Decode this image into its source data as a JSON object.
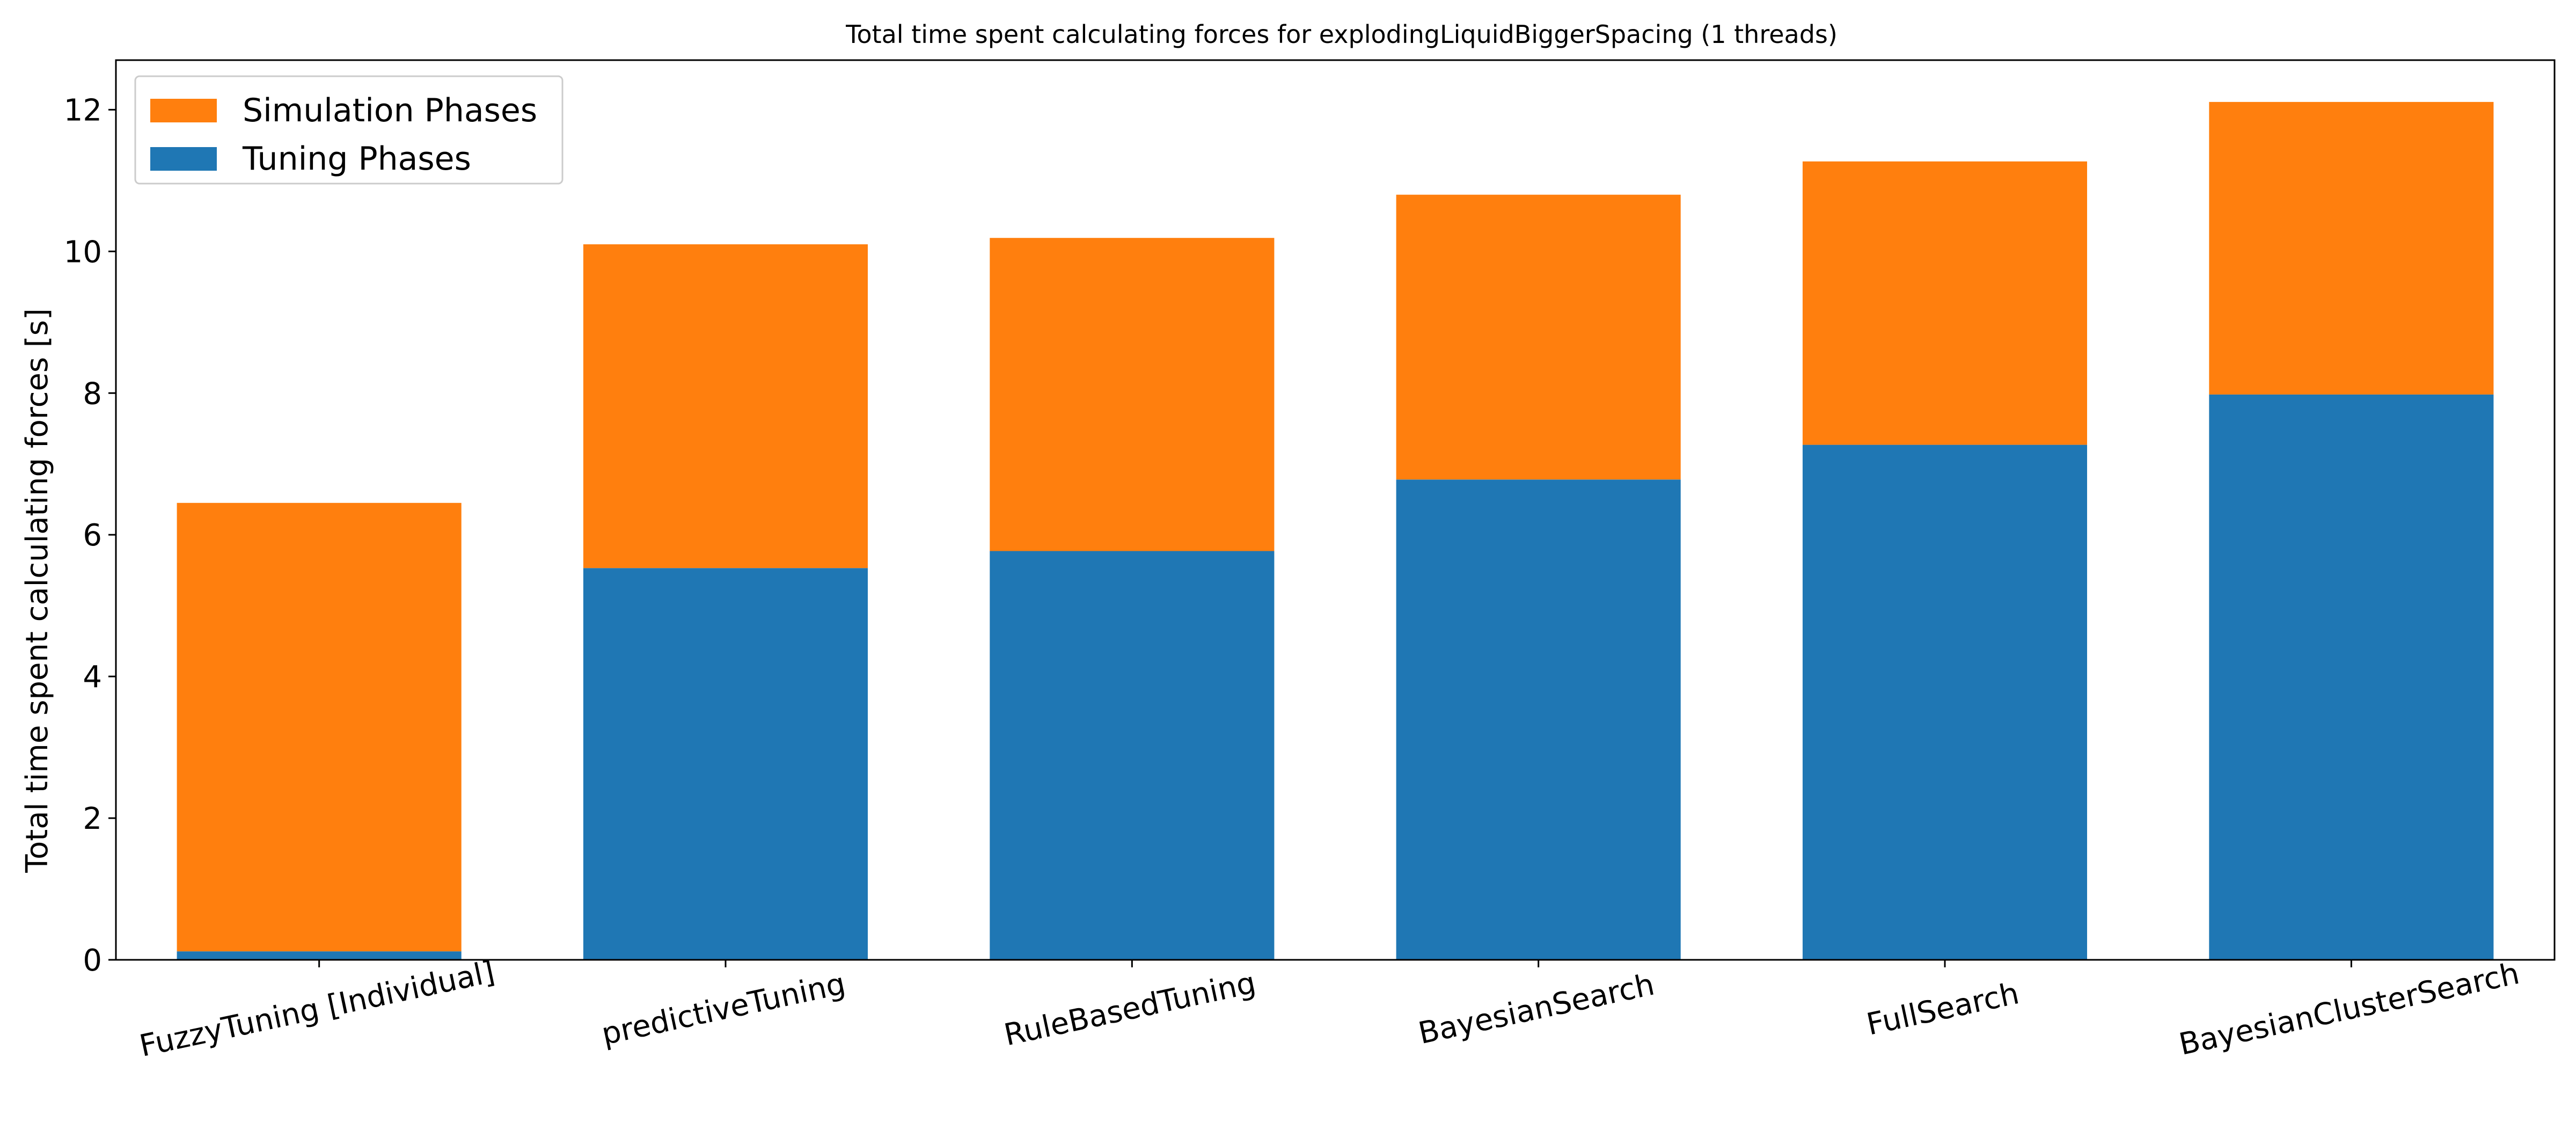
{
  "chart_data": {
    "type": "bar",
    "stacked": true,
    "title": "Total time spent calculating forces for explodingLiquidBiggerSpacing (1 threads)",
    "xlabel": "",
    "ylabel": "Total time spent calculating forces [s]",
    "ylim": [
      0,
      12.7
    ],
    "yticks": [
      0,
      2,
      4,
      6,
      8,
      10,
      12
    ],
    "grid": false,
    "legend_position": "top-left",
    "categories": [
      "FuzzyTuning [Individual]",
      "predictiveTuning",
      "RuleBasedTuning",
      "BayesianSearch",
      "FullSearch",
      "BayesianClusterSearch"
    ],
    "series": [
      {
        "name": "Tuning Phases",
        "color": "#1f77b4",
        "values": [
          0.12,
          5.53,
          5.77,
          6.78,
          7.27,
          7.98
        ]
      },
      {
        "name": "Simulation Phases",
        "color": "#ff7f0e",
        "values": [
          6.33,
          4.57,
          4.42,
          4.02,
          4.0,
          4.13
        ]
      }
    ],
    "legend_order": [
      "Simulation Phases",
      "Tuning Phases"
    ]
  }
}
